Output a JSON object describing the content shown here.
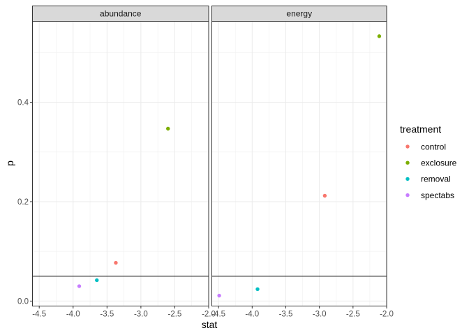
{
  "chart_data": {
    "type": "scatter",
    "xlabel": "stat",
    "ylabel": "p",
    "xlim": [
      -4.6,
      -2.0
    ],
    "ylim": [
      -0.01,
      0.563
    ],
    "x_ticks": [
      -4.5,
      -4.0,
      -3.5,
      -3.0,
      -2.5,
      -2.0
    ],
    "x_tick_labels": [
      "-4.5",
      "-4.0",
      "-3.5",
      "-3.0",
      "-2.5",
      "-2.0"
    ],
    "y_ticks": [
      0.0,
      0.2,
      0.4
    ],
    "y_tick_labels": [
      "0.0",
      "0.2",
      "0.4"
    ],
    "grid": true,
    "reference_line_y": 0.05,
    "facets": [
      {
        "name": "abundance",
        "points": [
          {
            "series": "control",
            "x": -3.37,
            "y": 0.077
          },
          {
            "series": "exclosure",
            "x": -2.6,
            "y": 0.347
          },
          {
            "series": "removal",
            "x": -3.65,
            "y": 0.042
          },
          {
            "series": "spectabs",
            "x": -3.91,
            "y": 0.03
          }
        ]
      },
      {
        "name": "energy",
        "points": [
          {
            "series": "control",
            "x": -2.92,
            "y": 0.212
          },
          {
            "series": "exclosure",
            "x": -2.11,
            "y": 0.533
          },
          {
            "series": "removal",
            "x": -3.92,
            "y": 0.024
          },
          {
            "series": "spectabs",
            "x": -4.49,
            "y": 0.011
          }
        ]
      }
    ],
    "legend": {
      "title": "treatment",
      "placement": "right",
      "entries": [
        {
          "name": "control",
          "color": "#F8766D"
        },
        {
          "name": "exclosure",
          "color": "#7CAE00"
        },
        {
          "name": "removal",
          "color": "#00BFC4"
        },
        {
          "name": "spectabs",
          "color": "#C77CFF"
        }
      ]
    }
  }
}
